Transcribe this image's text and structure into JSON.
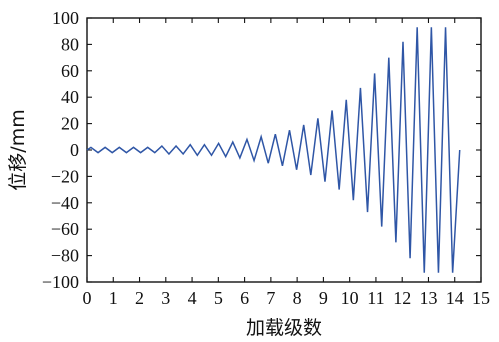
{
  "chart_data": {
    "type": "line",
    "xlabel": "加载级数",
    "ylabel": "位移/mm",
    "xlim": [
      0,
      15
    ],
    "ylim": [
      -100,
      100
    ],
    "xticks": [
      "0",
      "1",
      "2",
      "3",
      "4",
      "5",
      "6",
      "7",
      "8",
      "9",
      "10",
      "11",
      "12",
      "13",
      "14",
      "15"
    ],
    "yticks": [
      "100",
      "80",
      "60",
      "40",
      "20",
      "0",
      "−20",
      "−40",
      "−60",
      "−80",
      "−100"
    ],
    "grid": false,
    "colors": {
      "series": "#2f56a6",
      "axis": "#111111"
    },
    "series": [
      {
        "x": [
          0.0,
          0.15,
          0.42,
          0.69,
          0.96,
          1.23,
          1.5,
          1.77,
          2.04,
          2.31,
          2.58,
          2.85,
          3.12,
          3.39,
          3.66,
          3.93,
          4.2,
          4.47,
          4.74,
          5.01,
          5.28,
          5.55,
          5.82,
          6.09,
          6.36,
          6.63,
          6.9,
          7.17,
          7.44,
          7.71,
          7.98,
          8.25,
          8.52,
          8.79,
          9.06,
          9.33,
          9.6,
          9.87,
          10.14,
          10.41,
          10.68,
          10.95,
          11.22,
          11.49,
          11.76,
          12.03,
          12.3,
          12.57,
          12.84,
          13.11,
          13.38,
          13.65,
          13.92,
          14.19
        ],
        "y": [
          0,
          2,
          -2,
          2,
          -2,
          2,
          -2,
          2,
          -2,
          2,
          -2,
          3,
          -3,
          3,
          -3,
          4,
          -4,
          4,
          -4,
          5,
          -5,
          6,
          -6,
          8,
          -8,
          10,
          -10,
          12,
          -12,
          15,
          -15,
          19,
          -19,
          24,
          -24,
          30,
          -30,
          38,
          -38,
          47,
          -47,
          58,
          -58,
          70,
          -70,
          82,
          -82,
          93,
          -93,
          93,
          -93,
          93,
          -93,
          0
        ]
      }
    ]
  }
}
